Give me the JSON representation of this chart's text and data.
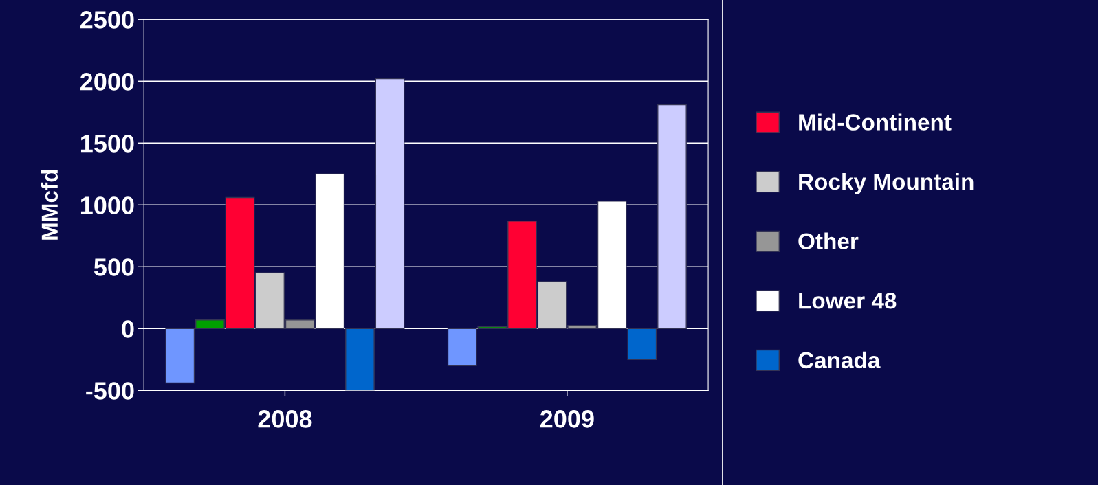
{
  "chart_data": {
    "type": "bar",
    "ylabel": "MMcfd",
    "categories": [
      "2008",
      "2009"
    ],
    "series": [
      {
        "color": "#6f96ff",
        "values": [
          -440,
          -300
        ]
      },
      {
        "color": "#00a000",
        "values": [
          70,
          15
        ]
      },
      {
        "name": "Mid-Continent",
        "color": "#ff0033",
        "values": [
          1060,
          870
        ]
      },
      {
        "name": "Rocky Mountain",
        "color": "#cccccc",
        "values": [
          450,
          380
        ]
      },
      {
        "name": "Other",
        "color": "#969696",
        "values": [
          70,
          25
        ]
      },
      {
        "name": "Lower 48",
        "color": "#ffffff",
        "values": [
          1250,
          1030
        ]
      },
      {
        "name": "Canada",
        "color": "#0066cc",
        "values": [
          -500,
          -250
        ]
      },
      {
        "color": "#ccccff",
        "values": [
          2020,
          1810
        ]
      }
    ],
    "ylim": [
      -500,
      2500
    ],
    "yticks": [
      -500,
      0,
      500,
      1000,
      1500,
      2000,
      2500
    ],
    "grid": "y",
    "legend": "right"
  }
}
